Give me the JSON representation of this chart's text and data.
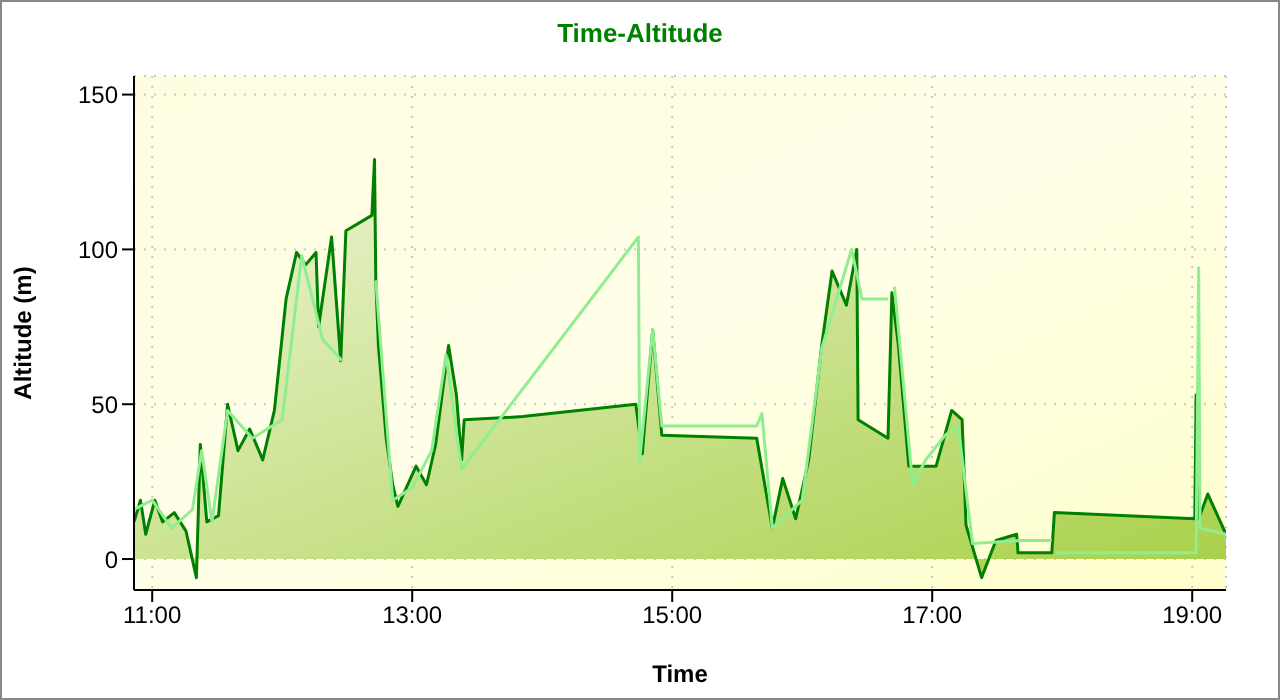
{
  "chart_data": {
    "type": "area",
    "title": "Time-Altitude",
    "xlabel": "Time",
    "ylabel": "Altitude (m)",
    "xlim": [
      10.86,
      19.26
    ],
    "xticks": [
      {
        "value": 11,
        "label": "11:00"
      },
      {
        "value": 13,
        "label": "13:00"
      },
      {
        "value": 15,
        "label": "15:00"
      },
      {
        "value": 17,
        "label": "17:00"
      },
      {
        "value": 19,
        "label": "19:00"
      }
    ],
    "ylim": [
      -10,
      156
    ],
    "yticks": [
      0,
      50,
      100,
      150
    ],
    "grid": true,
    "marker": "none",
    "line_style": "solid",
    "series": [
      {
        "color": "#008000",
        "x": [
          10.86,
          10.91,
          10.95,
          11.02,
          11.08,
          11.17,
          11.26,
          11.34,
          11.37,
          11.42,
          11.51,
          11.58,
          11.66,
          11.75,
          11.85,
          11.94,
          12.03,
          12.11,
          12.18,
          12.26,
          12.28,
          12.38,
          12.45,
          12.49,
          12.69,
          12.71,
          12.72,
          12.74,
          12.8,
          12.85,
          12.89,
          13.03,
          13.11,
          13.18,
          13.28,
          13.34,
          13.38,
          13.4,
          13.85,
          14.72,
          14.77,
          14.85,
          14.92,
          15.65,
          15.77,
          15.85,
          15.95,
          16.05,
          16.15,
          16.23,
          16.34,
          16.42,
          16.43,
          16.66,
          16.69,
          16.74,
          16.82,
          17.03,
          17.15,
          17.23,
          17.26,
          17.38,
          17.49,
          17.65,
          17.66,
          17.92,
          17.94,
          19.02,
          19.03,
          19.05,
          19.12,
          19.26
        ],
        "values": [
          12,
          19,
          8,
          19,
          12,
          15,
          9,
          -6,
          37,
          12,
          14,
          50,
          35,
          42,
          32,
          48,
          84,
          99,
          95,
          99,
          75,
          104,
          64,
          106,
          111,
          129,
          90,
          69,
          39,
          24,
          17,
          30,
          24,
          37,
          69,
          53,
          32,
          45,
          46,
          50,
          34,
          74,
          40,
          39,
          10,
          26,
          13,
          32,
          69,
          93,
          82,
          100,
          45,
          39,
          86,
          69,
          30,
          30,
          48,
          45,
          11,
          -6,
          6,
          8,
          2,
          2,
          15,
          13,
          53,
          13,
          21,
          8
        ]
      },
      {
        "type": "line",
        "color": "#90ee90",
        "x": [
          10.86,
          11,
          11.15,
          11.31,
          11.38,
          11.46,
          11.58,
          11.77,
          12,
          12.15,
          12.31,
          12.46,
          12.69,
          12.72,
          12.85,
          13,
          13.15,
          13.26,
          13.38,
          14.74,
          14.75,
          14.85,
          14.92,
          15.65,
          15.69,
          15.77,
          16,
          16.15,
          16.38,
          16.46,
          16.66,
          16.68,
          16.71,
          16.85,
          16.95,
          17.1,
          17.2,
          17.31,
          17.69,
          17.92,
          17.94,
          17.95,
          19.03,
          19.05,
          19.06,
          19.26
        ],
        "values": [
          16,
          19,
          10,
          16,
          35,
          12,
          48,
          39,
          45,
          98,
          71,
          64,
          null,
          90,
          19,
          23,
          35,
          66,
          29,
          104,
          32,
          74,
          43,
          43,
          47,
          10,
          19,
          68,
          100,
          84,
          84,
          null,
          88,
          24,
          32,
          40,
          43,
          5,
          6,
          6,
          null,
          2,
          2,
          94,
          10,
          8
        ]
      }
    ]
  }
}
